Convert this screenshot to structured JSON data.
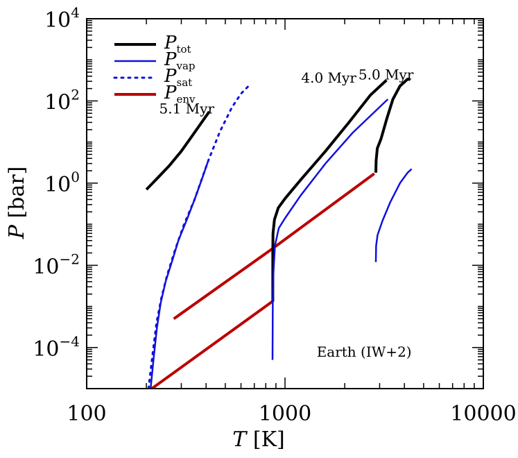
{
  "chart_data": {
    "type": "line",
    "xscale": "log",
    "yscale": "log",
    "xlim": [
      100,
      10000
    ],
    "ylim": [
      1e-05,
      10000
    ],
    "x_ticks": [
      {
        "value": 100,
        "label": "100"
      },
      {
        "value": 1000,
        "label": "1000"
      },
      {
        "value": 10000,
        "label": "10000"
      }
    ],
    "y_ticks": [
      {
        "value": 0.0001,
        "base": "10",
        "exp": "−4"
      },
      {
        "value": 0.01,
        "base": "10",
        "exp": "−2"
      },
      {
        "value": 1,
        "base": "10",
        "exp": "0"
      },
      {
        "value": 100,
        "base": "10",
        "exp": "2"
      },
      {
        "value": 10000,
        "base": "10",
        "exp": "4"
      }
    ],
    "xlabel": {
      "symbol": "T",
      "unit": "[K]"
    },
    "ylabel": {
      "symbol": "P",
      "unit": "[bar]"
    },
    "legend": {
      "position": "top-left",
      "entries": [
        {
          "main": "P",
          "sub": "tot",
          "color": "#000000",
          "style": "solid",
          "width": 4
        },
        {
          "main": "P",
          "sub": "vap",
          "color": "#1010dd",
          "style": "solid",
          "width": 2.5
        },
        {
          "main": "P",
          "sub": "sat",
          "color": "#1010dd",
          "style": "dotted",
          "width": 3
        },
        {
          "main": "P",
          "sub": "env",
          "color": "#bb0000",
          "style": "solid",
          "width": 4
        }
      ]
    },
    "annotations": [
      {
        "text": "5.1 Myr",
        "x": 440,
        "y": 50
      },
      {
        "text": "4.0 Myr",
        "x": 2290,
        "y": 280
      },
      {
        "text": "5.0 Myr",
        "x": 4450,
        "y": 330
      },
      {
        "text": "Earth (IW+2)",
        "x": 4350,
        "y": 6e-05
      }
    ],
    "series": [
      {
        "color": "#000000",
        "style": "solid",
        "width": 4,
        "points": [
          [
            200,
            0.7
          ],
          [
            230,
            1.4
          ],
          [
            260,
            2.6
          ],
          [
            300,
            6
          ],
          [
            340,
            14
          ],
          [
            380,
            30
          ],
          [
            415,
            55
          ]
        ]
      },
      {
        "color": "#1010dd",
        "style": "solid",
        "width": 2.5,
        "points": [
          [
            210,
            1e-05
          ],
          [
            218,
            6e-05
          ],
          [
            226,
            0.0003
          ],
          [
            236,
            0.0012
          ],
          [
            250,
            0.004
          ],
          [
            270,
            0.013
          ],
          [
            290,
            0.04
          ],
          [
            320,
            0.13
          ],
          [
            350,
            0.4
          ],
          [
            380,
            1.2
          ],
          [
            410,
            3.5
          ]
        ]
      },
      {
        "color": "#1010dd",
        "style": "dotted",
        "width": 3,
        "points": [
          [
            205,
            1e-05
          ],
          [
            215,
            7e-05
          ],
          [
            225,
            0.0004
          ],
          [
            238,
            0.0016
          ],
          [
            255,
            0.006
          ],
          [
            280,
            0.025
          ],
          [
            310,
            0.1
          ],
          [
            350,
            0.4
          ],
          [
            410,
            3.5
          ],
          [
            470,
            18
          ],
          [
            540,
            70
          ],
          [
            600,
            150
          ],
          [
            655,
            230
          ]
        ]
      },
      {
        "color": "#bb0000",
        "style": "solid",
        "width": 4,
        "points": [
          [
            275,
            0.0005
          ],
          [
            860,
            0.025
          ],
          [
            2820,
            1.7
          ]
        ]
      },
      {
        "color": "#bb0000",
        "style": "solid",
        "width": 4,
        "points": [
          [
            213,
            1e-05
          ],
          [
            860,
            0.0013
          ]
        ]
      },
      {
        "color": "#000000",
        "style": "solid",
        "width": 4,
        "points": [
          [
            868,
            0.0013
          ],
          [
            868,
            0.005
          ],
          [
            868,
            0.02
          ],
          [
            870,
            0.06
          ],
          [
            885,
            0.13
          ],
          [
            925,
            0.25
          ],
          [
            1000,
            0.42
          ],
          [
            1200,
            1.2
          ],
          [
            1600,
            6
          ],
          [
            2100,
            30
          ],
          [
            2700,
            140
          ],
          [
            3250,
            320
          ]
        ]
      },
      {
        "color": "#1010dd",
        "style": "solid",
        "width": 2.5,
        "points": [
          [
            865,
            5e-05
          ],
          [
            868,
            0.0013
          ],
          [
            875,
            0.007
          ],
          [
            890,
            0.03
          ],
          [
            930,
            0.08
          ],
          [
            1000,
            0.14
          ],
          [
            1200,
            0.5
          ],
          [
            1600,
            3
          ],
          [
            2200,
            17
          ],
          [
            3300,
            110
          ]
        ]
      },
      {
        "color": "#000000",
        "style": "solid",
        "width": 4,
        "points": [
          [
            2870,
            1.8
          ],
          [
            2880,
            3.5
          ],
          [
            2920,
            7
          ],
          [
            3050,
            12
          ],
          [
            3250,
            35
          ],
          [
            3500,
            110
          ],
          [
            3800,
            230
          ],
          [
            4150,
            340
          ],
          [
            4280,
            330
          ]
        ]
      },
      {
        "color": "#1010dd",
        "style": "solid",
        "width": 2.5,
        "points": [
          [
            2870,
            0.012
          ],
          [
            2880,
            0.03
          ],
          [
            2930,
            0.055
          ],
          [
            3100,
            0.12
          ],
          [
            3400,
            0.35
          ],
          [
            3800,
            1
          ],
          [
            4150,
            1.8
          ],
          [
            4350,
            2.2
          ]
        ]
      }
    ]
  }
}
